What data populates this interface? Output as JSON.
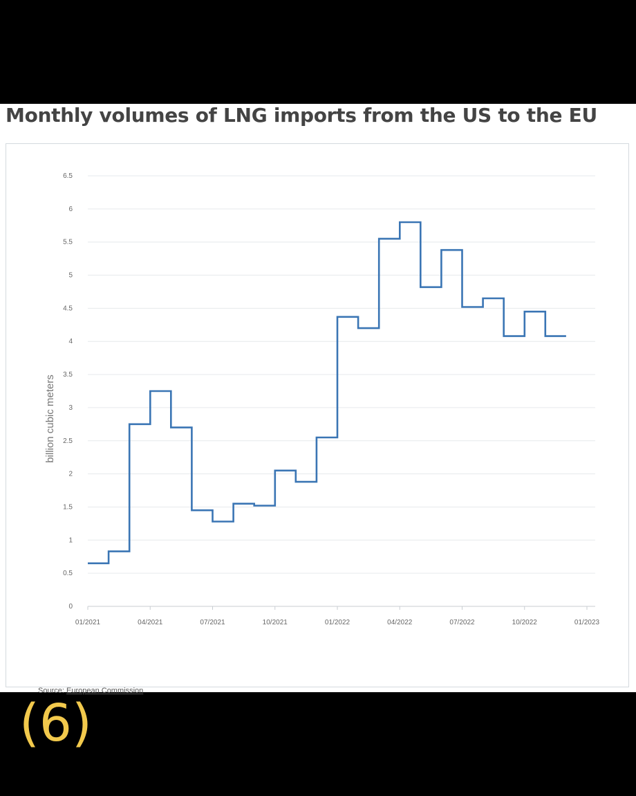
{
  "chart_data": {
    "type": "line",
    "step": true,
    "title": "Monthly volumes of LNG imports from the US to the EU",
    "ylabel": "billion cubic meters",
    "ylim": [
      0,
      6.5
    ],
    "yticks": [
      "0",
      "0.5",
      "1",
      "1.5",
      "2",
      "2.5",
      "3",
      "3.5",
      "4",
      "4.5",
      "5",
      "5.5",
      "6",
      "6.5"
    ],
    "xticks": [
      "01/2021",
      "04/2021",
      "07/2021",
      "10/2021",
      "01/2022",
      "04/2022",
      "07/2022",
      "10/2022",
      "01/2023"
    ],
    "xlim": [
      "01/2021",
      "01/2023"
    ],
    "grid": true,
    "series": [
      {
        "color": "#3a75b4",
        "x": [
          "01/2021",
          "02/2021",
          "03/2021",
          "04/2021",
          "05/2021",
          "06/2021",
          "07/2021",
          "08/2021",
          "09/2021",
          "10/2021",
          "11/2021",
          "12/2021",
          "01/2022",
          "02/2022",
          "03/2022",
          "04/2022",
          "05/2022",
          "06/2022",
          "07/2022",
          "08/2022",
          "09/2022",
          "10/2022",
          "11/2022"
        ],
        "values": [
          0.65,
          0.83,
          2.75,
          3.25,
          2.7,
          1.45,
          1.28,
          1.55,
          1.52,
          2.05,
          1.88,
          2.55,
          4.37,
          4.2,
          5.55,
          5.8,
          4.82,
          5.38,
          4.52,
          4.65,
          4.08,
          4.45,
          4.08
        ]
      }
    ]
  },
  "source": {
    "prefix": "Source:",
    "link_text": "European Commission"
  },
  "caption": "(6)"
}
